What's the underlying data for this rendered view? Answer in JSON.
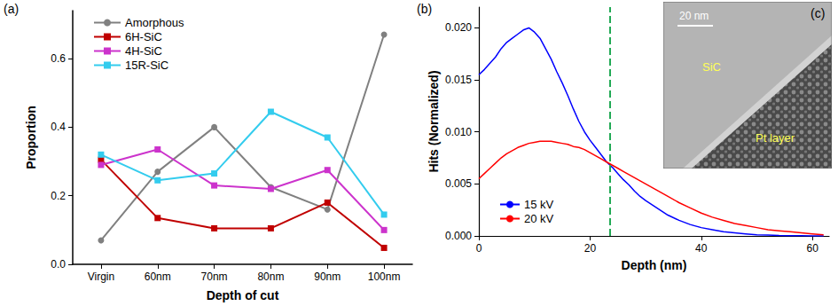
{
  "chart_data": [
    {
      "type": "line",
      "title": "(a)",
      "xlabel": "Depth of cut",
      "ylabel": "Proportion",
      "categories": [
        "Virgin",
        "60nm",
        "70nm",
        "80nm",
        "90nm",
        "100nm"
      ],
      "series": [
        {
          "name": "Amorphous",
          "color": "#808080",
          "marker": "circle",
          "line_style": "solid",
          "values": [
            0.07,
            0.27,
            0.4,
            0.225,
            0.16,
            0.67
          ]
        },
        {
          "name": "6H-SiC",
          "color": "#c00000",
          "marker": "square",
          "line_style": "solid",
          "values": [
            0.305,
            0.135,
            0.105,
            0.105,
            0.18,
            0.048
          ]
        },
        {
          "name": "4H-SiC",
          "color": "#cc33cc",
          "marker": "square",
          "line_style": "solid",
          "values": [
            0.29,
            0.335,
            0.23,
            0.22,
            0.275,
            0.1
          ]
        },
        {
          "name": "15R-SiC",
          "color": "#33ccee",
          "marker": "square",
          "line_style": "solid",
          "values": [
            0.32,
            0.245,
            0.265,
            0.445,
            0.37,
            0.145
          ]
        }
      ],
      "ylim": [
        0,
        0.74
      ],
      "yticks": [
        {
          "value": 0,
          "label": "0.0"
        },
        0.2,
        0.4,
        0.6
      ],
      "grid": false,
      "legend": "upper left"
    },
    {
      "type": "line",
      "title": "(b)",
      "xlabel": "Depth (nm)",
      "ylabel": "Hits (Normalized)",
      "x": [
        0,
        1,
        2,
        3,
        4,
        5,
        6,
        7,
        8,
        9,
        10,
        11,
        12,
        13,
        14,
        15,
        16,
        17,
        18,
        19,
        20,
        21,
        22,
        23,
        24,
        25,
        26,
        27,
        28,
        29,
        30,
        32,
        34,
        36,
        38,
        40,
        42,
        44,
        46,
        48,
        50,
        52,
        54,
        56,
        58,
        60,
        62
      ],
      "series": [
        {
          "name": "15 kV",
          "color": "#0000ff",
          "marker": "none",
          "line_style": "solid",
          "values": [
            0.0155,
            0.016,
            0.0166,
            0.0172,
            0.018,
            0.0186,
            0.019,
            0.0194,
            0.0198,
            0.02,
            0.0196,
            0.019,
            0.018,
            0.017,
            0.0158,
            0.0147,
            0.0135,
            0.0122,
            0.011,
            0.01,
            0.0092,
            0.0085,
            0.0078,
            0.0071,
            0.0066,
            0.006,
            0.0054,
            0.0049,
            0.0043,
            0.0038,
            0.0034,
            0.0027,
            0.002,
            0.0015,
            0.0011,
            0.0008,
            0.0006,
            0.0004,
            0.0003,
            0.0002,
            0.0001,
            8e-05,
            5e-05,
            3e-05,
            2e-05,
            1e-05,
            0
          ]
        },
        {
          "name": "20 kV",
          "color": "#ff0000",
          "marker": "none",
          "line_style": "solid",
          "values": [
            0.0055,
            0.006,
            0.0065,
            0.007,
            0.0075,
            0.0079,
            0.0082,
            0.0085,
            0.0087,
            0.0089,
            0.009,
            0.0091,
            0.0091,
            0.0091,
            0.009,
            0.0089,
            0.0088,
            0.0086,
            0.0085,
            0.0083,
            0.008,
            0.0077,
            0.0074,
            0.0071,
            0.0068,
            0.0065,
            0.0062,
            0.0059,
            0.0056,
            0.0053,
            0.005,
            0.0044,
            0.0038,
            0.0032,
            0.0027,
            0.0022,
            0.0018,
            0.0015,
            0.0012,
            0.001,
            0.0008,
            0.0006,
            0.0005,
            0.0004,
            0.0003,
            0.0002,
            0.0001
          ]
        }
      ],
      "vline": 23.5,
      "xlim": [
        0,
        63
      ],
      "xticks": [
        0,
        20,
        40,
        60
      ],
      "ylim": [
        0,
        0.022
      ],
      "yticks": [
        {
          "value": 0,
          "label": "0.000"
        },
        {
          "value": 0.005,
          "label": "0.005"
        },
        {
          "value": 0.01,
          "label": "0.010"
        },
        {
          "value": 0.015,
          "label": "0.015"
        },
        {
          "value": 0.02,
          "label": "0.020"
        }
      ],
      "grid": false,
      "legend": "lower left"
    },
    {
      "type": "image",
      "title": "(c)",
      "scale_bar": "20 nm",
      "labels": [
        "SiC",
        "Pt layer"
      ]
    }
  ]
}
